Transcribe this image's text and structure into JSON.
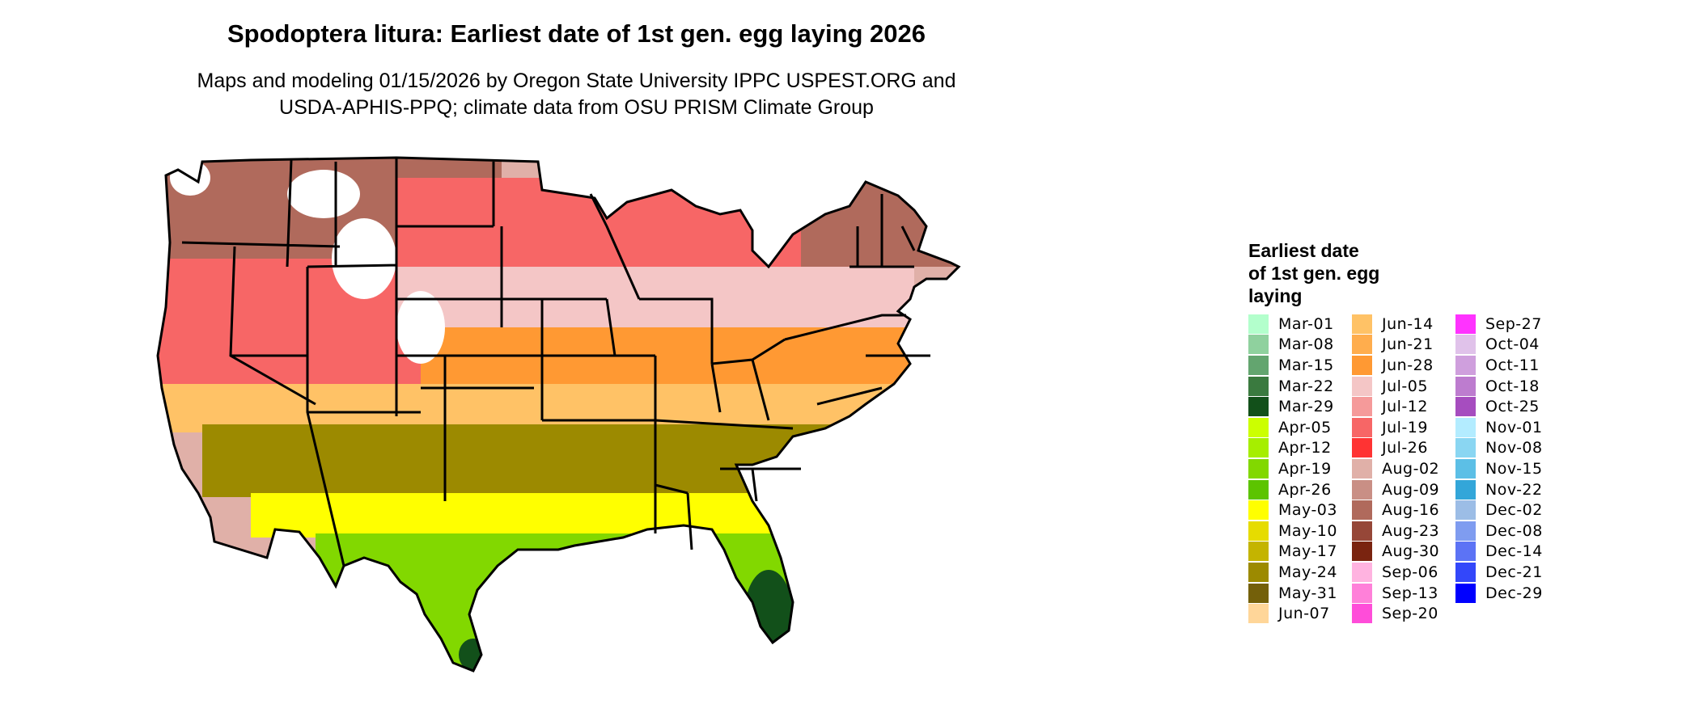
{
  "title": "Spodoptera litura: Earliest date of 1st gen. egg laying 2026",
  "subtitle_line1": "Maps and modeling 01/15/2026 by Oregon State University IPPC USPEST.ORG and",
  "subtitle_line2": "USDA-APHIS-PPQ; climate data from OSU PRISM Climate Group",
  "legend": {
    "title_lines": [
      "Earliest date",
      "of 1st gen. egg",
      "laying"
    ],
    "columns": [
      [
        {
          "label": "Mar-01",
          "color": "#b3ffcc"
        },
        {
          "label": "Mar-08",
          "color": "#8fd19e"
        },
        {
          "label": "Mar-15",
          "color": "#63a56f"
        },
        {
          "label": "Mar-22",
          "color": "#3a7a3f"
        },
        {
          "label": "Mar-29",
          "color": "#12501a"
        },
        {
          "label": "Apr-05",
          "color": "#ccff00"
        },
        {
          "label": "Apr-12",
          "color": "#a6ee00"
        },
        {
          "label": "Apr-19",
          "color": "#82d800"
        },
        {
          "label": "Apr-26",
          "color": "#5cc400"
        },
        {
          "label": "May-03",
          "color": "#ffff00"
        },
        {
          "label": "May-10",
          "color": "#e6dc00"
        },
        {
          "label": "May-17",
          "color": "#c4b400"
        },
        {
          "label": "May-24",
          "color": "#9c8a00"
        },
        {
          "label": "May-31",
          "color": "#74600a"
        },
        {
          "label": "Jun-07",
          "color": "#ffd699"
        }
      ],
      [
        {
          "label": "Jun-14",
          "color": "#ffc266"
        },
        {
          "label": "Jun-21",
          "color": "#ffad4d"
        },
        {
          "label": "Jun-28",
          "color": "#ff9933"
        },
        {
          "label": "Jul-05",
          "color": "#f4c6c6"
        },
        {
          "label": "Jul-12",
          "color": "#f59a9a"
        },
        {
          "label": "Jul-19",
          "color": "#f76666"
        },
        {
          "label": "Jul-26",
          "color": "#ff3333"
        },
        {
          "label": "Aug-02",
          "color": "#e0b0a8"
        },
        {
          "label": "Aug-09",
          "color": "#c98f85"
        },
        {
          "label": "Aug-16",
          "color": "#b06a5c"
        },
        {
          "label": "Aug-23",
          "color": "#964738"
        },
        {
          "label": "Aug-30",
          "color": "#7a2410"
        },
        {
          "label": "Sep-06",
          "color": "#ffb3e0"
        },
        {
          "label": "Sep-13",
          "color": "#ff80d9"
        },
        {
          "label": "Sep-20",
          "color": "#ff4dd9"
        }
      ],
      [
        {
          "label": "Sep-27",
          "color": "#ff33ff"
        },
        {
          "label": "Oct-04",
          "color": "#e0c2ea"
        },
        {
          "label": "Oct-11",
          "color": "#cf9fdd"
        },
        {
          "label": "Oct-18",
          "color": "#bd7ccf"
        },
        {
          "label": "Oct-25",
          "color": "#a64dbf"
        },
        {
          "label": "Nov-01",
          "color": "#b3ecff"
        },
        {
          "label": "Nov-08",
          "color": "#8ad6f2"
        },
        {
          "label": "Nov-15",
          "color": "#5cbfe6"
        },
        {
          "label": "Nov-22",
          "color": "#33a6d9"
        },
        {
          "label": "Dec-02",
          "color": "#9cbde6"
        },
        {
          "label": "Dec-08",
          "color": "#7f9cf0"
        },
        {
          "label": "Dec-14",
          "color": "#5c73f5"
        },
        {
          "label": "Dec-21",
          "color": "#3347fa"
        },
        {
          "label": "Dec-29",
          "color": "#0000ff"
        }
      ]
    ]
  },
  "map_colors": {
    "northwest_brown": "#b06a5c",
    "north_red": "#f76666",
    "north_pink": "#e0b0a8",
    "central_light_pink": "#f4c6c6",
    "mid_orange": "#ff9933",
    "light_orange": "#ffc266",
    "gulf_olive": "#9c8a00",
    "south_yellow": "#ffff00",
    "south_green": "#82d800",
    "florida_dark": "#12501a",
    "snow_white": "#ffffff",
    "border": "#000000"
  }
}
